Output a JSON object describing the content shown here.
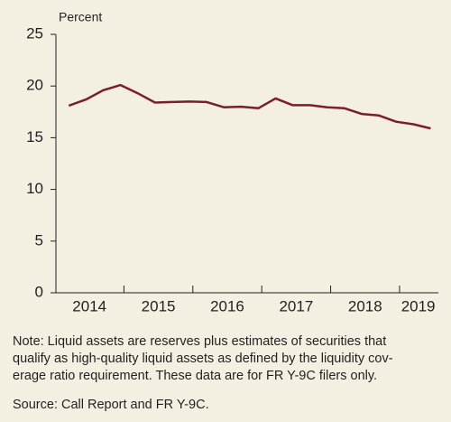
{
  "chart_data": {
    "type": "line",
    "ylabel": "Percent",
    "x": [
      2014.2,
      2014.45,
      2014.7,
      2014.95,
      2015.2,
      2015.45,
      2015.7,
      2015.95,
      2016.2,
      2016.45,
      2016.7,
      2016.95,
      2017.2,
      2017.45,
      2017.7,
      2017.95,
      2018.2,
      2018.45,
      2018.7,
      2018.95,
      2019.2,
      2019.45
    ],
    "series": [
      {
        "name": "Liquid assets",
        "color": "#7b1e2c",
        "values": [
          18.1,
          18.7,
          19.6,
          20.1,
          19.3,
          18.4,
          18.45,
          18.5,
          18.45,
          17.95,
          18.0,
          17.85,
          18.8,
          18.15,
          18.15,
          17.95,
          17.85,
          17.3,
          17.15,
          16.55,
          16.3,
          15.9
        ]
      }
    ],
    "xlim": [
      2014,
      2019.55
    ],
    "xtick_marks": [
      2015,
      2016,
      2017,
      2018,
      2019
    ],
    "xlabels": [
      {
        "value": 2014.5,
        "label": "2014"
      },
      {
        "value": 2015.5,
        "label": "2015"
      },
      {
        "value": 2016.5,
        "label": "2016"
      },
      {
        "value": 2017.5,
        "label": "2017"
      },
      {
        "value": 2018.5,
        "label": "2018"
      },
      {
        "value": 2019.27,
        "label": "2019"
      }
    ],
    "ylim": [
      0,
      25
    ],
    "yticks": [
      0,
      5,
      10,
      15,
      20,
      25
    ],
    "note": [
      "Note: Liquid assets are reserves plus estimates of securities that",
      "qualify as high-quality liquid assets as defined by the liquidity cov-",
      "erage ratio requirement. These data are for FR Y-9C filers only."
    ],
    "source": "Source: Call Report and FR Y-9C."
  }
}
